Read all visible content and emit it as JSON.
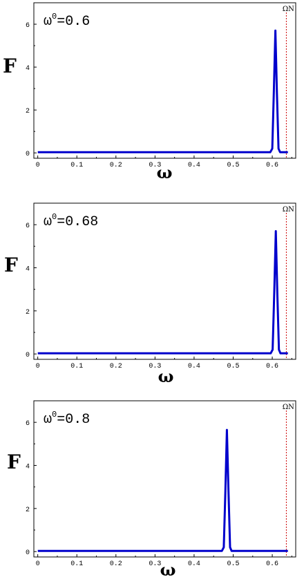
{
  "colors": {
    "curve": "#0000cc",
    "marker": "#cc0000",
    "axis": "#000000"
  },
  "chart_data": [
    {
      "type": "line",
      "annotation": {
        "symbol": "ω",
        "sup": "0",
        "text": "=0.6"
      },
      "ylabel": "F",
      "xlabel": "ω",
      "marker_label": "ΩN",
      "marker_x": 0.636,
      "xlim": [
        -0.01,
        0.66
      ],
      "ylim": [
        -0.25,
        7.0
      ],
      "xticks": [
        "0",
        "0.1",
        "0.2",
        "0.3",
        "0.4",
        "0.5",
        "0.6"
      ],
      "yticks": [
        "0",
        "2",
        "4",
        "6"
      ],
      "series": [
        {
          "x": [
            0.0,
            0.595,
            0.6,
            0.604,
            0.608,
            0.612,
            0.616,
            0.62,
            0.64
          ],
          "y": [
            0.03,
            0.03,
            0.2,
            2.8,
            5.7,
            2.8,
            0.2,
            0.03,
            0.03
          ]
        }
      ]
    },
    {
      "type": "line",
      "annotation": {
        "symbol": "ω",
        "sup": "0",
        "text": "=0.68"
      },
      "ylabel": "F",
      "xlabel": "ω",
      "marker_label": "ΩN",
      "marker_x": 0.636,
      "xlim": [
        -0.01,
        0.66
      ],
      "ylim": [
        -0.25,
        7.0
      ],
      "xticks": [
        "0",
        "0.1",
        "0.2",
        "0.3",
        "0.4",
        "0.5",
        "0.6"
      ],
      "yticks": [
        "0",
        "2",
        "4",
        "6"
      ],
      "series": [
        {
          "x": [
            0.0,
            0.596,
            0.601,
            0.605,
            0.609,
            0.613,
            0.617,
            0.621,
            0.64
          ],
          "y": [
            0.03,
            0.03,
            0.2,
            2.8,
            5.7,
            2.8,
            0.2,
            0.03,
            0.03
          ]
        }
      ]
    },
    {
      "type": "line",
      "annotation": {
        "symbol": "ω",
        "sup": "0",
        "text": "=0.8"
      },
      "ylabel": "F",
      "xlabel": "ω",
      "marker_label": "ΩN",
      "marker_x": 0.636,
      "xlim": [
        -0.01,
        0.66
      ],
      "ylim": [
        -0.25,
        7.0
      ],
      "xticks": [
        "0",
        "0.1",
        "0.2",
        "0.3",
        "0.4",
        "0.5",
        "0.6"
      ],
      "yticks": [
        "0",
        "2",
        "4",
        "6"
      ],
      "series": [
        {
          "x": [
            0.0,
            0.471,
            0.476,
            0.48,
            0.484,
            0.488,
            0.492,
            0.496,
            0.64
          ],
          "y": [
            0.03,
            0.03,
            0.2,
            2.8,
            5.65,
            2.8,
            0.2,
            0.03,
            0.03
          ]
        }
      ]
    }
  ]
}
